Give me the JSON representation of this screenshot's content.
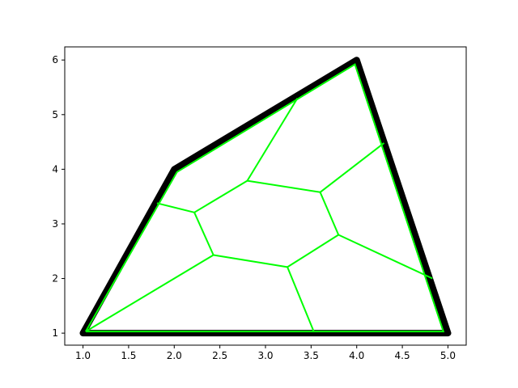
{
  "chart_data": {
    "type": "line",
    "title": "",
    "xlabel": "",
    "ylabel": "",
    "xlim": [
      0.8,
      5.2
    ],
    "ylim": [
      0.78,
      6.24
    ],
    "xticks": [
      1.0,
      1.5,
      2.0,
      2.5,
      3.0,
      3.5,
      4.0,
      4.5,
      5.0
    ],
    "xtick_labels": [
      "1.0",
      "1.5",
      "2.0",
      "2.5",
      "3.0",
      "3.5",
      "4.0",
      "4.5",
      "5.0"
    ],
    "yticks": [
      1,
      2,
      3,
      4,
      5,
      6
    ],
    "ytick_labels": [
      "1",
      "2",
      "3",
      "4",
      "5",
      "6"
    ],
    "grid": false,
    "legend": false,
    "colors": {
      "outline": "#000000",
      "edges": "#00ff00"
    },
    "outline": {
      "x": [
        1.0,
        2.0,
        4.0,
        5.0,
        1.0
      ],
      "y": [
        1.0,
        4.0,
        6.0,
        1.0,
        1.0
      ]
    },
    "inner_boundary": {
      "x": [
        1.03,
        2.03,
        3.98,
        4.95,
        1.03
      ],
      "y": [
        1.03,
        3.95,
        5.92,
        1.03,
        1.03
      ]
    },
    "edges": [
      {
        "x": [
          1.03,
          2.43
        ],
        "y": [
          1.03,
          2.43
        ]
      },
      {
        "x": [
          2.43,
          3.24
        ],
        "y": [
          2.43,
          2.21
        ]
      },
      {
        "x": [
          3.24,
          3.53
        ],
        "y": [
          2.21,
          1.03
        ]
      },
      {
        "x": [
          3.24,
          3.8
        ],
        "y": [
          2.21,
          2.8
        ]
      },
      {
        "x": [
          3.8,
          4.83
        ],
        "y": [
          2.8,
          2.0
        ]
      },
      {
        "x": [
          3.8,
          3.6
        ],
        "y": [
          2.8,
          3.58
        ]
      },
      {
        "x": [
          3.6,
          4.3
        ],
        "y": [
          3.58,
          4.48
        ]
      },
      {
        "x": [
          3.6,
          2.8
        ],
        "y": [
          3.58,
          3.79
        ]
      },
      {
        "x": [
          2.8,
          3.35
        ],
        "y": [
          3.79,
          5.3
        ]
      },
      {
        "x": [
          2.8,
          2.22
        ],
        "y": [
          3.79,
          3.21
        ]
      },
      {
        "x": [
          2.22,
          1.81
        ],
        "y": [
          3.21,
          3.38
        ]
      },
      {
        "x": [
          2.22,
          2.43
        ],
        "y": [
          3.21,
          2.43
        ]
      }
    ]
  }
}
